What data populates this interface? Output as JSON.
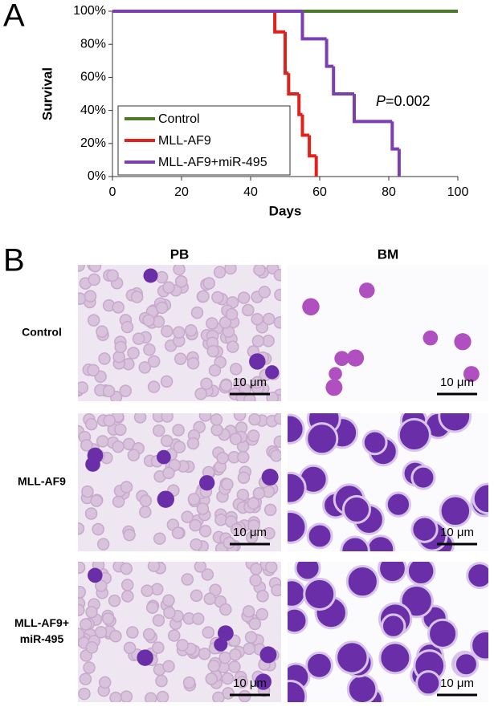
{
  "panel_a_label": "A",
  "chart_data": {
    "type": "step",
    "x_label": "Days",
    "y_label": "Survival",
    "xlim": [
      0,
      100
    ],
    "xticks": [
      0,
      20,
      40,
      60,
      80,
      100
    ],
    "ylim": [
      0,
      100
    ],
    "yticks": [
      {
        "value": 0,
        "label": "0%"
      },
      {
        "value": 20,
        "label": "20%"
      },
      {
        "value": 40,
        "label": "40%"
      },
      {
        "value": 60,
        "label": "60%"
      },
      {
        "value": 80,
        "label": "80%"
      },
      {
        "value": 100,
        "label": "100%"
      }
    ],
    "legend": "lower left",
    "annotation": [
      "P",
      "=0.002"
    ],
    "series": [
      {
        "name": "Control",
        "color": "#4b7a2b",
        "x": [
          0,
          100
        ],
        "values": [
          100,
          100
        ]
      },
      {
        "name": "MLL-AF9",
        "color": "#e1211b",
        "x": [
          0,
          47,
          50,
          51,
          54,
          55,
          57,
          59
        ],
        "values": [
          100,
          87.5,
          62.5,
          50,
          37.5,
          25,
          12.5,
          0
        ]
      },
      {
        "name": "MLL-AF9+miR-495",
        "color": "#7b3fb2",
        "x": [
          0,
          55,
          62,
          64,
          70,
          81,
          83
        ],
        "values": [
          100,
          83.3,
          66.7,
          50,
          33.3,
          16.7,
          0
        ]
      }
    ]
  },
  "panel_b": {
    "label": "B",
    "columns": [
      "PB",
      "BM"
    ],
    "rows": [
      [
        "Control"
      ],
      [
        "MLL-AF9"
      ],
      [
        "MLL-AF9+",
        "miR-495"
      ]
    ],
    "scale_bars": [
      [
        "10 μm",
        "10 μm"
      ],
      [
        "10 μm",
        "10 μm"
      ],
      [
        "10 μm",
        "10 μm"
      ]
    ]
  }
}
